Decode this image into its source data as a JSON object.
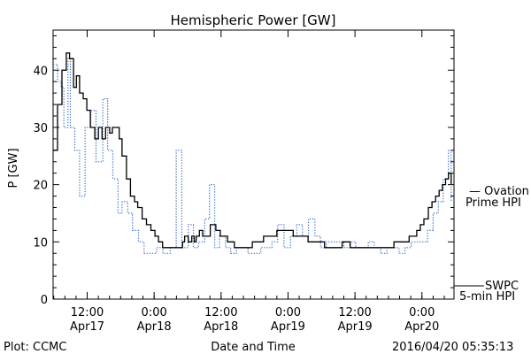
{
  "chart_data": {
    "type": "line",
    "title": "Hemispheric Power [GW]",
    "xlabel": "Date and Time",
    "ylabel": "P [GW]",
    "ylim": [
      0,
      47
    ],
    "xlim": [
      0,
      100
    ],
    "grid": false,
    "y_ticks": [
      0,
      10,
      20,
      30,
      40
    ],
    "x_ticks": [
      {
        "x": 8.5,
        "time": "12:00",
        "date": "Apr17"
      },
      {
        "x": 25.2,
        "time": "0:00",
        "date": "Apr18"
      },
      {
        "x": 41.9,
        "time": "12:00",
        "date": "Apr18"
      },
      {
        "x": 58.6,
        "time": "0:00",
        "date": "Apr19"
      },
      {
        "x": 75.3,
        "time": "12:00",
        "date": "Apr19"
      },
      {
        "x": 92.0,
        "time": "0:00",
        "date": "Apr20"
      }
    ],
    "series": [
      {
        "name": "SWPC 5-min HPI",
        "color": "#000000",
        "style": "solid",
        "x": [
          0.0,
          1.1,
          2.2,
          3.3,
          4.1,
          5.1,
          5.8,
          6.6,
          7.5,
          8.4,
          9.3,
          10.4,
          11.3,
          12.2,
          13.1,
          14.1,
          14.8,
          15.7,
          16.5,
          17.2,
          18.3,
          19.3,
          20.3,
          21.1,
          22.2,
          23.3,
          24.4,
          25.4,
          26.3,
          27.3,
          28.2,
          28.9,
          29.8,
          30.6,
          31.7,
          32.3,
          32.8,
          33.7,
          34.6,
          35.2,
          35.7,
          36.5,
          37.3,
          38.0,
          38.7,
          39.2,
          39.9,
          40.6,
          41.7,
          42.5,
          42.9,
          43.5,
          44.4,
          45.2,
          45.9,
          46.7,
          47.4,
          48.1,
          49.0,
          49.7,
          50.6,
          51.6,
          52.5,
          53.2,
          54.5,
          55.8,
          56.9,
          58.6,
          59.9,
          61.3,
          62.6,
          63.6,
          64.4,
          65.7,
          66.7,
          67.7,
          68.5,
          69.4,
          70.4,
          71.2,
          72.1,
          73.2,
          74.1,
          75.0,
          76.2,
          77.4,
          78.2,
          79.2,
          80.5,
          81.7,
          82.8,
          83.8,
          85.0,
          86.3,
          87.7,
          88.8,
          89.8,
          90.7,
          91.6,
          92.5,
          93.6,
          94.5,
          95.4,
          96.3,
          97.1,
          97.9,
          98.6,
          99.3
        ],
        "y": [
          26,
          34,
          40,
          43,
          42,
          37,
          39,
          36,
          35,
          33,
          30,
          28,
          30,
          28,
          30,
          29,
          30,
          30,
          28,
          25,
          21,
          18,
          17,
          16,
          14,
          13,
          12,
          11,
          10,
          9,
          9,
          9,
          9,
          9,
          9,
          10,
          11,
          10,
          11,
          10,
          11,
          12,
          11,
          11,
          11,
          13,
          13,
          12,
          11,
          11,
          11,
          10,
          10,
          9,
          9,
          9,
          9,
          9,
          9,
          10,
          10,
          10,
          11,
          11,
          11,
          12,
          12,
          12,
          11,
          11,
          11,
          10,
          10,
          10,
          10,
          9,
          9,
          9,
          9,
          9,
          10,
          10,
          9,
          9,
          9,
          9,
          9,
          9,
          9,
          9,
          9,
          9,
          10,
          10,
          10,
          11,
          11,
          12,
          13,
          14,
          16,
          17,
          18,
          19,
          20,
          21,
          22,
          20
        ]
      },
      {
        "name": "Ovation Prime HPI",
        "color": "#3a6fce",
        "style": "dotted",
        "x": [
          0.0,
          1.1,
          2.0,
          2.7,
          3.7,
          4.3,
          5.4,
          6.6,
          8.0,
          9.4,
          10.7,
          12.4,
          13.6,
          14.9,
          16.2,
          17.2,
          18.6,
          19.8,
          21.3,
          22.7,
          24.0,
          25.8,
          27.4,
          29.2,
          30.7,
          32.1,
          33.7,
          35.0,
          36.3,
          37.8,
          39.0,
          40.3,
          41.5,
          43.0,
          44.3,
          45.7,
          47.0,
          48.6,
          50.2,
          51.8,
          53.2,
          54.6,
          56.0,
          57.6,
          59.2,
          60.8,
          62.2,
          63.7,
          65.3,
          66.7,
          68.1,
          69.6,
          71.1,
          72.5,
          74.0,
          75.5,
          77.1,
          78.6,
          80.1,
          81.7,
          83.3,
          84.8,
          86.3,
          87.8,
          89.3,
          90.6,
          92.0,
          93.4,
          94.8,
          96.1,
          97.3,
          98.6,
          99.3
        ],
        "y": [
          41,
          38,
          37,
          30,
          42,
          30,
          26,
          18,
          30,
          33,
          24,
          35,
          26,
          21,
          15,
          17,
          15,
          12,
          10,
          8,
          8,
          9,
          8,
          9,
          26,
          9,
          13,
          9,
          10,
          14,
          20,
          9,
          11,
          9,
          8,
          9,
          9,
          8,
          8,
          9,
          9,
          10,
          13,
          9,
          11,
          13,
          11,
          14,
          11,
          9,
          10,
          10,
          10,
          9,
          10,
          9,
          9,
          10,
          9,
          8,
          9,
          9,
          8,
          9,
          10,
          10,
          10,
          12,
          15,
          17,
          21,
          26,
          17
        ]
      }
    ]
  },
  "footer": {
    "left": "Plot: CCMC",
    "right": "2016/04/20 05:35:13"
  },
  "legend": {
    "ovation": {
      "line1": "— Ovation",
      "line2": "Prime HPI"
    },
    "swpc": {
      "line1": "SWPC",
      "line2": "5-min HPI"
    }
  },
  "colors": {
    "swpc": "#000000",
    "ovation": "#3a6fce"
  }
}
